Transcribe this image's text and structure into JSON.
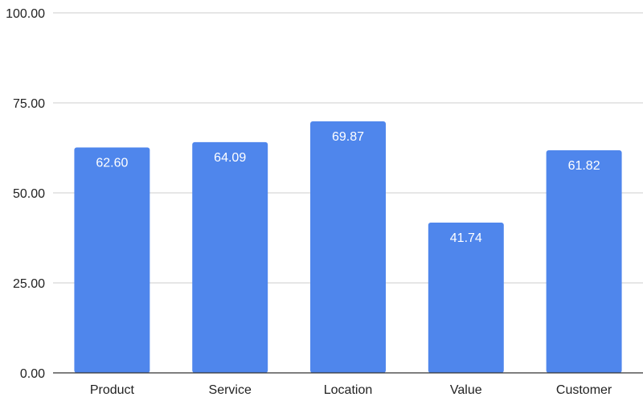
{
  "chart_data": {
    "type": "bar",
    "categories": [
      "Product",
      "Service",
      "Location",
      "Value",
      "Customer"
    ],
    "values": [
      62.6,
      64.09,
      69.87,
      41.74,
      61.82
    ],
    "value_labels": [
      "62.60",
      "64.09",
      "69.87",
      "41.74",
      "61.82"
    ],
    "title": "",
    "xlabel": "",
    "ylabel": "",
    "ylim": [
      0,
      100
    ],
    "yticks": [
      0,
      25,
      50,
      75,
      100
    ],
    "ytick_labels": [
      "0.00",
      "25.00",
      "50.00",
      "75.00",
      "100.00"
    ],
    "grid": true,
    "legend": "none",
    "bar_color": "#4f86ec"
  }
}
